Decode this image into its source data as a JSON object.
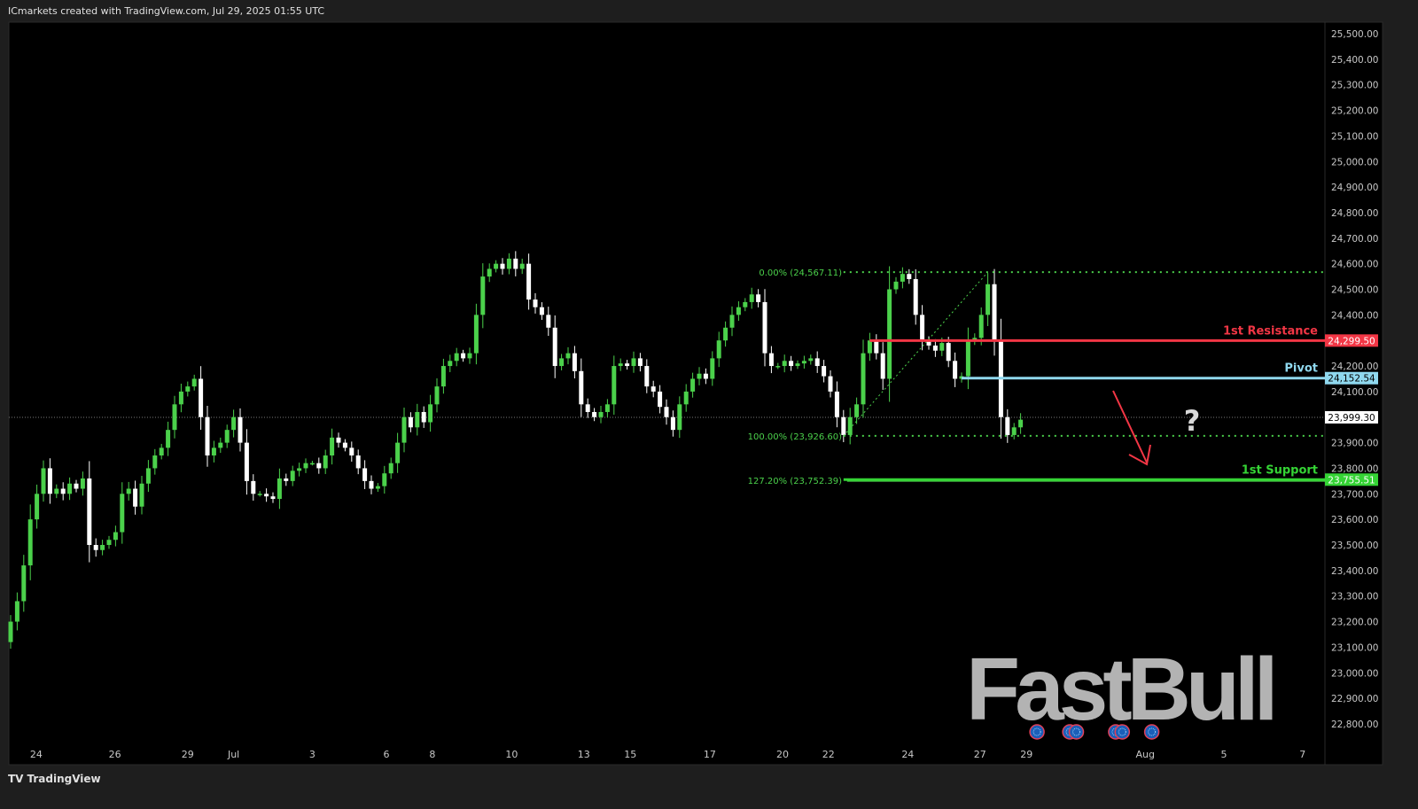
{
  "header": {
    "title": "ICmarkets created with TradingView.com, Jul 29, 2025 01:55 UTC"
  },
  "footer": {
    "brand": "TradingView"
  },
  "watermark": "FastBull",
  "colors": {
    "up": "#4bd14b",
    "down": "#ffffff",
    "background": "#000000",
    "resistance": "#f23645",
    "pivot": "#8fd8ee",
    "support": "#35d435",
    "fib": "#4bd14b",
    "arrow": "#f23645"
  },
  "chart_data": {
    "type": "candlestick",
    "ylim": [
      22750,
      25550
    ],
    "y_ticks": [
      25500,
      25400,
      25300,
      25200,
      25100,
      25000,
      24900,
      24800,
      24700,
      24600,
      24500,
      24400,
      24300,
      24200,
      24100,
      24000,
      23900,
      23800,
      23700,
      23600,
      23500,
      23400,
      23300,
      23200,
      23100,
      23000,
      22900,
      22800
    ],
    "x_ticks": [
      {
        "label": "24",
        "bar": 3.9
      },
      {
        "label": "26",
        "bar": 15.9
      },
      {
        "label": "29",
        "bar": 27
      },
      {
        "label": "Jul",
        "bar": 34
      },
      {
        "label": "3",
        "bar": 46
      },
      {
        "label": "6",
        "bar": 57.3
      },
      {
        "label": "8",
        "bar": 64.3
      },
      {
        "label": "10",
        "bar": 76.4
      },
      {
        "label": "13",
        "bar": 87.4
      },
      {
        "label": "15",
        "bar": 94.5
      },
      {
        "label": "17",
        "bar": 106.6
      },
      {
        "label": "20",
        "bar": 117.7
      },
      {
        "label": "22",
        "bar": 124.7
      },
      {
        "label": "24",
        "bar": 136.8
      },
      {
        "label": "27",
        "bar": 147.8
      },
      {
        "label": "29",
        "bar": 154.9
      },
      {
        "label": "Aug",
        "bar": 173
      },
      {
        "label": "5",
        "bar": 185
      },
      {
        "label": "7",
        "bar": 197
      }
    ],
    "closes": [
      23200,
      23280,
      23420,
      23600,
      23700,
      23800,
      23700,
      23720,
      23700,
      23740,
      23720,
      23760,
      23500,
      23480,
      23500,
      23520,
      23550,
      23700,
      23720,
      23650,
      23740,
      23800,
      23850,
      23880,
      23950,
      24050,
      24100,
      24120,
      24150,
      24000,
      23850,
      23880,
      23900,
      23950,
      24000,
      23900,
      23750,
      23700,
      23700,
      23690,
      23680,
      23760,
      23750,
      23790,
      23800,
      23820,
      23820,
      23800,
      23850,
      23920,
      23900,
      23880,
      23850,
      23800,
      23750,
      23720,
      23730,
      23780,
      23820,
      23900,
      24000,
      23960,
      24020,
      23980,
      24050,
      24120,
      24200,
      24220,
      24250,
      24230,
      24250,
      24400,
      24550,
      24580,
      24600,
      24580,
      24620,
      24580,
      24600,
      24460,
      24430,
      24400,
      24350,
      24200,
      24230,
      24250,
      24180,
      24050,
      24020,
      24000,
      24020,
      24050,
      24200,
      24210,
      24200,
      24230,
      24200,
      24120,
      24100,
      24040,
      24000,
      23950,
      24050,
      24100,
      24150,
      24170,
      24150,
      24230,
      24300,
      24350,
      24400,
      24430,
      24450,
      24480,
      24450,
      24250,
      24200,
      24200,
      24220,
      24200,
      24210,
      24220,
      24230,
      24200,
      24160,
      24100,
      24000,
      23930,
      24000,
      24050,
      24250,
      24300,
      24250,
      24150,
      24500,
      24530,
      24560,
      24540,
      24400,
      24300,
      24280,
      24260,
      24290,
      24220,
      24150,
      24160,
      24300,
      24310,
      24400,
      24520,
      24300,
      24000,
      23930,
      23960,
      23990
    ],
    "current_price": {
      "value": 23999.3,
      "label": "23,999.30"
    },
    "levels": [
      {
        "name": "1st Resistance",
        "value": 24299.5,
        "label": "24,299.50",
        "color": "#f23645",
        "from_bar": 131
      },
      {
        "name": "Pivot",
        "value": 24152.54,
        "label": "24,152.54",
        "color": "#8fd8ee",
        "from_bar": 145
      },
      {
        "name": "1st Support",
        "value": 23755.51,
        "label": "23,755.51",
        "color": "#35d435",
        "from_bar": 127
      }
    ],
    "fibonacci": {
      "from_bar": 127,
      "to_bar": 149,
      "levels": [
        {
          "label": "0.00% (24,567.11)",
          "value": 24567.11,
          "style": "dotted"
        },
        {
          "label": "100.00% (23,926.60)",
          "value": 23926.6,
          "style": "dotted"
        },
        {
          "label": "127.20% (23,752.39)",
          "value": 23752.39,
          "style": "solid"
        }
      ]
    },
    "annotations": {
      "question_mark": "?",
      "arrow": "down"
    },
    "event_markers_bars": [
      156.5,
      161.5,
      162.5,
      168.5,
      169.5,
      174
    ]
  }
}
